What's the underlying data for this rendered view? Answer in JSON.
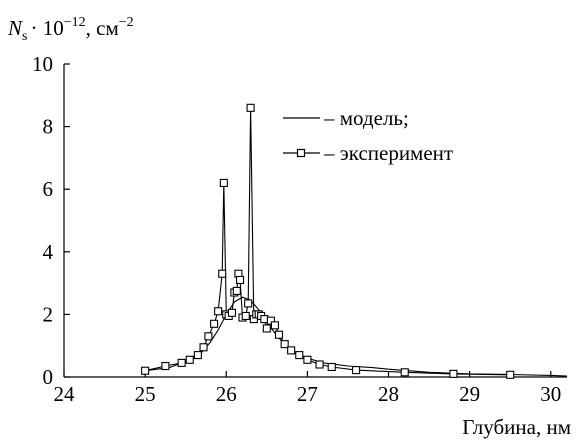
{
  "chart_data": {
    "type": "line",
    "ylabel": {
      "symbol": "N",
      "subscript": "s",
      "factor": "· 10",
      "exponent": "−12",
      "unit_prefix": ", см",
      "unit_exponent": "−2"
    },
    "xlabel": "Глубина, нм",
    "xlim": [
      24,
      30.2
    ],
    "ylim": [
      0,
      10
    ],
    "xticks": [
      24,
      25,
      26,
      27,
      28,
      29,
      30
    ],
    "yticks": [
      0,
      2,
      4,
      6,
      8,
      10
    ],
    "grid": false,
    "legend_position": "top-right",
    "legend": [
      {
        "marker": "line",
        "label": "– модель;"
      },
      {
        "marker": "line-square",
        "label": "– эксперимент"
      }
    ],
    "series": [
      {
        "style": "line",
        "x": [
          25.0,
          25.3,
          25.5,
          25.6,
          25.7,
          25.8,
          25.9,
          26.0,
          26.1,
          26.2,
          26.3,
          26.4,
          26.5,
          26.6,
          26.7,
          26.8,
          27.0,
          27.2,
          27.5,
          27.8,
          28.0,
          28.5,
          29.0,
          29.5,
          30.0,
          30.2
        ],
        "y": [
          0.2,
          0.3,
          0.5,
          0.6,
          0.8,
          1.1,
          1.5,
          2.0,
          2.4,
          2.55,
          2.45,
          2.15,
          1.75,
          1.4,
          1.1,
          0.85,
          0.6,
          0.45,
          0.35,
          0.3,
          0.25,
          0.15,
          0.1,
          0.08,
          0.05,
          0.03
        ]
      },
      {
        "style": "line-square",
        "x": [
          25.0,
          25.25,
          25.45,
          25.55,
          25.65,
          25.72,
          25.78,
          25.85,
          25.9,
          25.95,
          25.97,
          26.0,
          26.03,
          26.07,
          26.1,
          26.13,
          26.15,
          26.17,
          26.2,
          26.24,
          26.27,
          26.3,
          26.34,
          26.37,
          26.4,
          26.43,
          26.47,
          26.5,
          26.55,
          26.6,
          26.65,
          26.72,
          26.8,
          26.9,
          27.0,
          27.15,
          27.3,
          27.6,
          28.2,
          28.8,
          29.5
        ],
        "y": [
          0.2,
          0.35,
          0.45,
          0.55,
          0.7,
          0.95,
          1.3,
          1.7,
          2.1,
          3.3,
          6.2,
          2.0,
          1.95,
          2.05,
          2.7,
          2.75,
          3.3,
          3.1,
          1.9,
          1.95,
          2.35,
          8.6,
          1.85,
          2.0,
          2.0,
          1.95,
          1.85,
          1.55,
          1.8,
          1.65,
          1.35,
          1.05,
          0.85,
          0.7,
          0.55,
          0.4,
          0.32,
          0.22,
          0.15,
          0.1,
          0.07
        ]
      }
    ]
  }
}
